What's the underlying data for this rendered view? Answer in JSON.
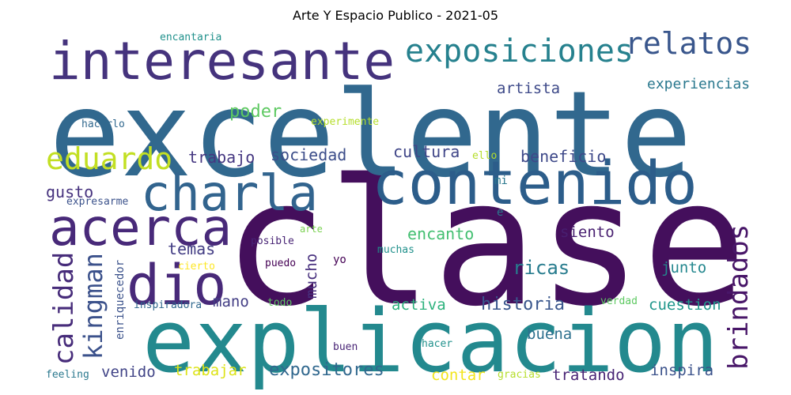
{
  "chart_data": {
    "type": "wordcloud",
    "title": "Arte Y Espacio Publico - 2021-05",
    "words": [
      {
        "text": "clase",
        "weight": 100,
        "color": "#440f5c",
        "orientation": "horizontal"
      },
      {
        "text": "excelente",
        "weight": 90,
        "color": "#31688e",
        "orientation": "horizontal"
      },
      {
        "text": "explicacion",
        "weight": 70,
        "color": "#23898e",
        "orientation": "horizontal"
      },
      {
        "text": "contenido",
        "weight": 48,
        "color": "#2c5d8a",
        "orientation": "horizontal"
      },
      {
        "text": "interesante",
        "weight": 44,
        "color": "#45337d",
        "orientation": "horizontal"
      },
      {
        "text": "charla",
        "weight": 40,
        "color": "#32648e",
        "orientation": "horizontal"
      },
      {
        "text": "acerca",
        "weight": 40,
        "color": "#482979",
        "orientation": "horizontal"
      },
      {
        "text": "dio",
        "weight": 42,
        "color": "#482979",
        "orientation": "horizontal"
      },
      {
        "text": "exposiciones",
        "weight": 26,
        "color": "#26818e",
        "orientation": "horizontal"
      },
      {
        "text": "relatos",
        "weight": 24,
        "color": "#39568c",
        "orientation": "horizontal"
      },
      {
        "text": "eduardo",
        "weight": 24,
        "color": "#c2df23",
        "orientation": "horizontal"
      },
      {
        "text": "calidad",
        "weight": 22,
        "color": "#472c7a",
        "orientation": "vertical"
      },
      {
        "text": "kingman",
        "weight": 22,
        "color": "#3b518b",
        "orientation": "vertical"
      },
      {
        "text": "brindados",
        "weight": 22,
        "color": "#481668",
        "orientation": "vertical"
      },
      {
        "text": "historia",
        "weight": 14,
        "color": "#39568c",
        "orientation": "horizontal"
      },
      {
        "text": "expositores",
        "weight": 14,
        "color": "#31688e",
        "orientation": "horizontal"
      },
      {
        "text": "ricas",
        "weight": 14,
        "color": "#287c8e",
        "orientation": "horizontal"
      },
      {
        "text": "encanto",
        "weight": 12,
        "color": "#43bf71",
        "orientation": "horizontal"
      },
      {
        "text": "mucho",
        "weight": 12,
        "color": "#472f7d",
        "orientation": "vertical"
      },
      {
        "text": "temas",
        "weight": 12,
        "color": "#433d84",
        "orientation": "horizontal"
      },
      {
        "text": "sociedad",
        "weight": 12,
        "color": "#3d4e8a",
        "orientation": "horizontal"
      },
      {
        "text": "cultura",
        "weight": 12,
        "color": "#404688",
        "orientation": "horizontal"
      },
      {
        "text": "beneficio",
        "weight": 12,
        "color": "#3e4989",
        "orientation": "horizontal"
      },
      {
        "text": "trabajo",
        "weight": 12,
        "color": "#453781",
        "orientation": "horizontal"
      },
      {
        "text": "poder",
        "weight": 12,
        "color": "#5ec962",
        "orientation": "horizontal"
      },
      {
        "text": "gusto",
        "weight": 11,
        "color": "#46327e",
        "orientation": "horizontal"
      },
      {
        "text": "artista",
        "weight": 11,
        "color": "#3e4a89",
        "orientation": "horizontal"
      },
      {
        "text": "experiencias",
        "weight": 11,
        "color": "#2a788e",
        "orientation": "horizontal"
      },
      {
        "text": "siento",
        "weight": 11,
        "color": "#481f70",
        "orientation": "horizontal"
      },
      {
        "text": "junto",
        "weight": 11,
        "color": "#24878e",
        "orientation": "horizontal"
      },
      {
        "text": "activa",
        "weight": 11,
        "color": "#2db27d",
        "orientation": "horizontal"
      },
      {
        "text": "mano",
        "weight": 11,
        "color": "#433e85",
        "orientation": "horizontal"
      },
      {
        "text": "cuestion",
        "weight": 11,
        "color": "#1f968b",
        "orientation": "horizontal"
      },
      {
        "text": "buena",
        "weight": 11,
        "color": "#2d708e",
        "orientation": "horizontal"
      },
      {
        "text": "venido",
        "weight": 11,
        "color": "#414487",
        "orientation": "horizontal"
      },
      {
        "text": "trabajar",
        "weight": 11,
        "color": "#dde318",
        "orientation": "horizontal"
      },
      {
        "text": "contar",
        "weight": 11,
        "color": "#f2e51d",
        "orientation": "horizontal"
      },
      {
        "text": "tratando",
        "weight": 11,
        "color": "#482475",
        "orientation": "horizontal"
      },
      {
        "text": "inspira",
        "weight": 11,
        "color": "#3b528b",
        "orientation": "horizontal"
      },
      {
        "text": "enriquecedor",
        "weight": 9,
        "color": "#3b528b",
        "orientation": "vertical"
      },
      {
        "text": "encantaria",
        "weight": 9,
        "color": "#21918c",
        "orientation": "horizontal"
      },
      {
        "text": "hacerlo",
        "weight": 9,
        "color": "#31688e",
        "orientation": "horizontal"
      },
      {
        "text": "experimente",
        "weight": 9,
        "color": "#b5de2b",
        "orientation": "horizontal"
      },
      {
        "text": "ello",
        "weight": 9,
        "color": "#b5de2b",
        "orientation": "horizontal"
      },
      {
        "text": "mi",
        "weight": 9,
        "color": "#2a788e",
        "orientation": "horizontal"
      },
      {
        "text": "e",
        "weight": 9,
        "color": "#2a788e",
        "orientation": "horizontal"
      },
      {
        "text": "expresarme",
        "weight": 9,
        "color": "#3b528b",
        "orientation": "horizontal"
      },
      {
        "text": "arte",
        "weight": 9,
        "color": "#7ad151",
        "orientation": "horizontal"
      },
      {
        "text": "posible",
        "weight": 9,
        "color": "#482475",
        "orientation": "horizontal"
      },
      {
        "text": "cierto",
        "weight": 9,
        "color": "#fde725",
        "orientation": "horizontal"
      },
      {
        "text": "puedo",
        "weight": 9,
        "color": "#440154",
        "orientation": "horizontal"
      },
      {
        "text": "yo",
        "weight": 9,
        "color": "#440154",
        "orientation": "horizontal"
      },
      {
        "text": "muchas",
        "weight": 9,
        "color": "#21918c",
        "orientation": "horizontal"
      },
      {
        "text": "inspiradora",
        "weight": 9,
        "color": "#31688e",
        "orientation": "horizontal"
      },
      {
        "text": "todo",
        "weight": 9,
        "color": "#5ec962",
        "orientation": "horizontal"
      },
      {
        "text": "verdad",
        "weight": 9,
        "color": "#5ec962",
        "orientation": "horizontal"
      },
      {
        "text": "buen",
        "weight": 9,
        "color": "#482475",
        "orientation": "horizontal"
      },
      {
        "text": "hacer",
        "weight": 9,
        "color": "#21918c",
        "orientation": "horizontal"
      },
      {
        "text": "feeling",
        "weight": 9,
        "color": "#2a788e",
        "orientation": "horizontal"
      },
      {
        "text": "gracias",
        "weight": 9,
        "color": "#b5de2b",
        "orientation": "horizontal"
      }
    ]
  }
}
